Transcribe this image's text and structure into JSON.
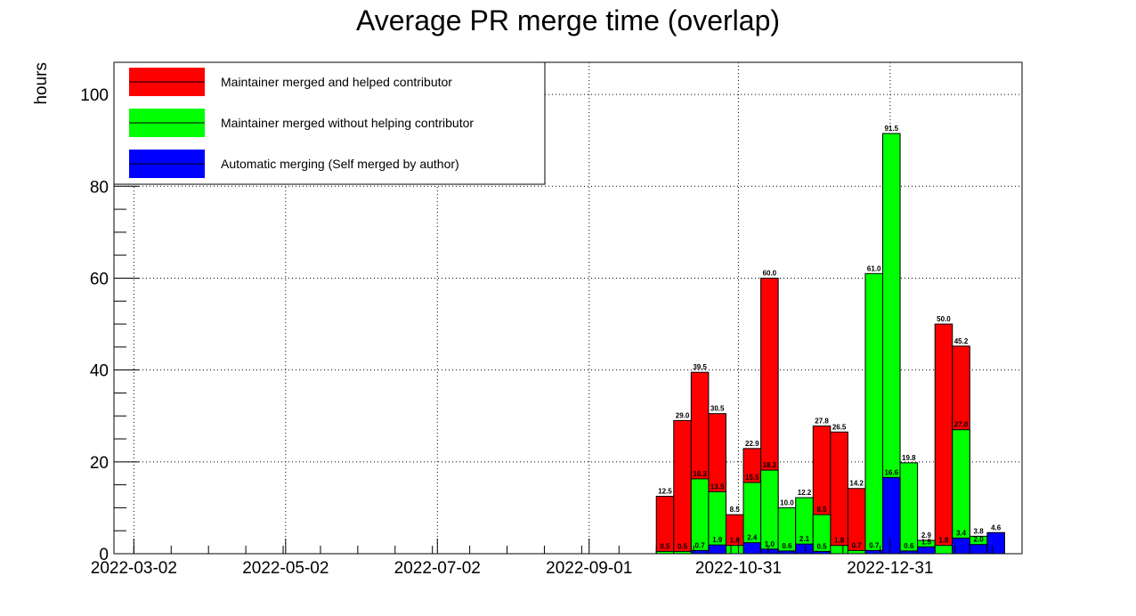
{
  "chart_data": {
    "type": "bar",
    "title": "Average PR merge time (overlap)",
    "ylabel": "hours",
    "xlabel": "",
    "ylim": [
      0,
      107
    ],
    "y_ticks": [
      0,
      20,
      40,
      60,
      80,
      100
    ],
    "x_date_range": [
      "2022-02-22",
      "2023-02-22"
    ],
    "x_tick_labels": [
      "2022-03-02",
      "2022-05-02",
      "2022-07-02",
      "2022-09-01",
      "2022-10-31",
      "2022-12-31"
    ],
    "bin_width_days": 7,
    "bin_starts": [
      "2022-09-28",
      "2022-10-05",
      "2022-10-12",
      "2022-10-19",
      "2022-10-26",
      "2022-11-02",
      "2022-11-09",
      "2022-11-16",
      "2022-11-23",
      "2022-11-30",
      "2022-12-07",
      "2022-12-14",
      "2022-12-21",
      "2022-12-28",
      "2023-01-04",
      "2023-01-11",
      "2023-01-18",
      "2023-01-25",
      "2023-02-01",
      "2023-02-08"
    ],
    "grid": true,
    "legend_position": "top-left",
    "series": [
      {
        "name": "Maintainer merged and helped contributor",
        "color": "#ff0000",
        "values": [
          12.5,
          29.0,
          39.5,
          30.5,
          8.5,
          22.9,
          60.0,
          null,
          null,
          27.8,
          26.5,
          14.2,
          null,
          null,
          null,
          null,
          50.0,
          45.2,
          null,
          null
        ],
        "labels": [
          "12.5",
          "29.0",
          "39.5",
          "30.5",
          "8.5",
          "22.9",
          "60.0",
          "",
          "",
          "27.8",
          "26.5",
          "14.2",
          "",
          "",
          "",
          "",
          "50.0",
          "45.2",
          "",
          ""
        ]
      },
      {
        "name": "Maintainer merged without helping contributor",
        "color": "#00ff00",
        "values": [
          0.5,
          0.5,
          16.3,
          13.5,
          1.8,
          15.5,
          18.2,
          10.0,
          12.2,
          8.5,
          1.8,
          0.7,
          61.0,
          91.5,
          19.8,
          2.9,
          1.8,
          27.0,
          3.8,
          null
        ],
        "labels": [
          "0.5",
          "0.5",
          "16.3",
          "13.5",
          "1.8",
          "15.5",
          "18.2",
          "10.0",
          "12.2",
          "8.5",
          "1.8",
          "0.7",
          "61.0",
          "91.5",
          "19.8",
          "2.9",
          "1.8",
          "27.0",
          "3.8",
          ""
        ]
      },
      {
        "name": "Automatic merging (Self merged by author)",
        "color": "#0000ff",
        "values": [
          null,
          null,
          0.7,
          1.9,
          null,
          2.4,
          1.0,
          0.6,
          2.1,
          0.5,
          null,
          null,
          0.7,
          16.6,
          0.6,
          1.5,
          null,
          3.4,
          2.0,
          4.6
        ],
        "labels": [
          "",
          "",
          "0.7",
          "1.9",
          "",
          "2.4",
          "1.0",
          "0.6",
          "2.1",
          "0.5",
          "",
          "",
          "0.7",
          "16.6",
          "0.6",
          "1.5",
          "",
          "3.4",
          "2.0",
          "4.6"
        ]
      }
    ]
  }
}
